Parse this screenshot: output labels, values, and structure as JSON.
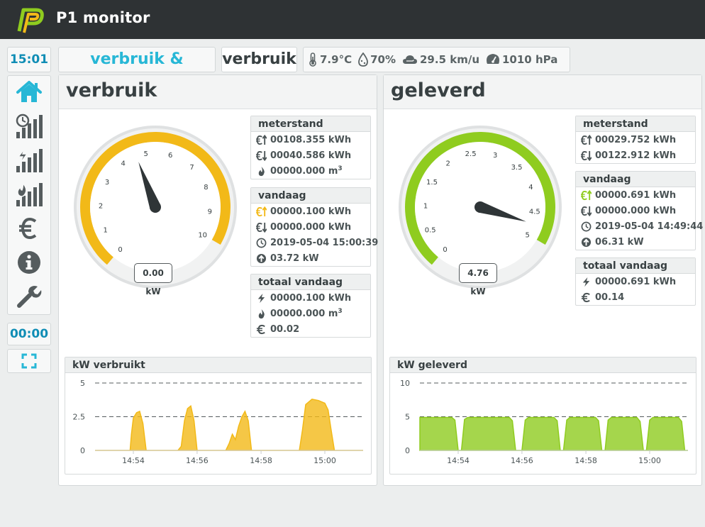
{
  "app": {
    "title": "P1 monitor"
  },
  "clock": "15:01",
  "timer": "00:00",
  "tabs": {
    "both_label": "verbruik & levering",
    "use_label": "verbruik"
  },
  "weather": {
    "temperature": "7.9°C",
    "humidity": "70%",
    "wind": "29.5 km/u",
    "pressure": "1010 hPa"
  },
  "sidebar": {
    "items": [
      {
        "icon": "home-icon",
        "active": true
      },
      {
        "icon": "clock-bars-icon"
      },
      {
        "icon": "power-bars-icon"
      },
      {
        "icon": "gas-bars-icon"
      },
      {
        "icon": "euro-icon"
      },
      {
        "icon": "info-icon"
      },
      {
        "icon": "wrench-icon"
      }
    ]
  },
  "colors": {
    "consumption": "#f2b918",
    "production": "#8fcc1f",
    "accent": "#27b7d6",
    "clock": "#0f8db5",
    "topbar": "#2e3234"
  },
  "verbruik": {
    "title": "verbruik",
    "gauge": {
      "readout": "0.00 kW",
      "value": 0.0,
      "min": 0,
      "max": 10,
      "needle_position": 4.6,
      "ticks": [
        "0",
        "1",
        "2",
        "3",
        "4",
        "5",
        "6",
        "7",
        "8",
        "9",
        "10"
      ]
    },
    "meterstand": {
      "title": "meterstand",
      "lines": [
        {
          "icon": "euro-up-icon",
          "text": "00108.355 kWh"
        },
        {
          "icon": "euro-down-icon",
          "text": "00040.586 kWh"
        },
        {
          "icon": "flame-icon",
          "text": "00000.000 m",
          "sup": "3"
        }
      ]
    },
    "vandaag": {
      "title": "vandaag",
      "lines": [
        {
          "icon": "euro-up-icon",
          "text": "00000.100 kWh",
          "highlight": true
        },
        {
          "icon": "euro-down-icon",
          "text": "00000.000 kWh"
        },
        {
          "icon": "clock-icon",
          "text": "2019-05-04 15:00:39"
        },
        {
          "icon": "arrow-up-circle-icon",
          "text": "03.72 kW"
        }
      ]
    },
    "totaal": {
      "title": "totaal vandaag",
      "lines": [
        {
          "icon": "bolt-icon",
          "text": "00000.100 kWh"
        },
        {
          "icon": "flame-icon",
          "text": "00000.000 m",
          "sup": "3"
        },
        {
          "icon": "euro-icon",
          "text": "00.02"
        }
      ]
    },
    "chart_title": "kW verbruikt"
  },
  "geleverd": {
    "title": "geleverd",
    "gauge": {
      "readout": "4.76 kW",
      "value": 4.76,
      "min": 0,
      "max": 5,
      "needle_position": 4.76,
      "ticks": [
        "0",
        "0.5",
        "1",
        "1.5",
        "2",
        "2.5",
        "3",
        "3.5",
        "4",
        "4.5",
        "5"
      ]
    },
    "meterstand": {
      "title": "meterstand",
      "lines": [
        {
          "icon": "euro-up-icon",
          "text": "00029.752 kWh"
        },
        {
          "icon": "euro-down-icon",
          "text": "00122.912 kWh"
        }
      ]
    },
    "vandaag": {
      "title": "vandaag",
      "lines": [
        {
          "icon": "euro-up-icon",
          "text": "00000.691 kWh",
          "highlight": true
        },
        {
          "icon": "euro-down-icon",
          "text": "00000.000 kWh"
        },
        {
          "icon": "clock-icon",
          "text": "2019-05-04 14:49:44"
        },
        {
          "icon": "arrow-up-circle-icon",
          "text": "06.31 kW"
        }
      ]
    },
    "totaal": {
      "title": "totaal vandaag",
      "lines": [
        {
          "icon": "bolt-icon",
          "text": "00000.691 kWh"
        },
        {
          "icon": "euro-icon",
          "text": "00.14"
        }
      ]
    },
    "chart_title": "kW geleverd"
  },
  "chart_data": [
    {
      "type": "area",
      "title": "kW verbruikt",
      "xlabel": "",
      "ylabel": "",
      "x_ticks": [
        "14:54",
        "14:56",
        "14:58",
        "15:00"
      ],
      "y_ticks": [
        "0",
        "2.5",
        "5"
      ],
      "ylim": [
        0,
        5
      ],
      "xlim": [
        14.88,
        15.02
      ],
      "grid": "dashed horizontal",
      "series": [
        {
          "color": "#f2b918",
          "points": [
            [
              14.88,
              0
            ],
            [
              14.8917,
              0
            ],
            [
              14.8983,
              0
            ],
            [
              14.899,
              1.2
            ],
            [
              14.9,
              2.4
            ],
            [
              14.9017,
              2.8
            ],
            [
              14.9033,
              2.9
            ],
            [
              14.905,
              2.0
            ],
            [
              14.9067,
              0
            ],
            [
              14.9233,
              0
            ],
            [
              14.925,
              0.3
            ],
            [
              14.9267,
              2.2
            ],
            [
              14.9283,
              3.1
            ],
            [
              14.93,
              3.3
            ],
            [
              14.9317,
              2.2
            ],
            [
              14.9333,
              0
            ],
            [
              14.9483,
              0
            ],
            [
              14.95,
              0.5
            ],
            [
              14.9517,
              1.2
            ],
            [
              14.9533,
              0.8
            ],
            [
              14.955,
              1.8
            ],
            [
              14.9567,
              2.5
            ],
            [
              14.9583,
              2.9
            ],
            [
              14.96,
              2.2
            ],
            [
              14.9617,
              0
            ],
            [
              14.9867,
              0
            ],
            [
              14.9883,
              1.5
            ],
            [
              14.99,
              3.4
            ],
            [
              14.9933,
              3.8
            ],
            [
              14.9967,
              3.7
            ],
            [
              15.0,
              3.5
            ],
            [
              15.0017,
              3.0
            ],
            [
              15.0033,
              1.5
            ],
            [
              15.005,
              0
            ],
            [
              15.02,
              0
            ]
          ]
        }
      ]
    },
    {
      "type": "area",
      "title": "kW geleverd",
      "xlabel": "",
      "ylabel": "",
      "x_ticks": [
        "14:54",
        "14:56",
        "14:58",
        "15:00"
      ],
      "y_ticks": [
        "0",
        "5",
        "10"
      ],
      "ylim": [
        0,
        10
      ],
      "xlim": [
        14.88,
        15.02
      ],
      "grid": "dashed horizontal",
      "series": [
        {
          "color": "#8fcc1f",
          "points": [
            [
              14.88,
              4.9
            ],
            [
              14.8967,
              4.9
            ],
            [
              14.8983,
              4.5
            ],
            [
              14.9,
              0
            ],
            [
              14.9017,
              0
            ],
            [
              14.9033,
              4.6
            ],
            [
              14.905,
              4.9
            ],
            [
              14.9267,
              4.9
            ],
            [
              14.9283,
              4.4
            ],
            [
              14.93,
              0
            ],
            [
              14.9333,
              0
            ],
            [
              14.935,
              4.5
            ],
            [
              14.9367,
              4.9
            ],
            [
              14.95,
              4.9
            ],
            [
              14.9517,
              4.4
            ],
            [
              14.9533,
              0
            ],
            [
              14.955,
              0
            ],
            [
              14.9567,
              4.5
            ],
            [
              14.9583,
              4.9
            ],
            [
              14.9717,
              4.9
            ],
            [
              14.9733,
              4.4
            ],
            [
              14.975,
              0
            ],
            [
              14.9767,
              0
            ],
            [
              14.9783,
              4.5
            ],
            [
              14.98,
              4.9
            ],
            [
              14.9933,
              4.9
            ],
            [
              14.995,
              4.3
            ],
            [
              14.9967,
              0
            ],
            [
              14.9983,
              0
            ],
            [
              15.0,
              4.5
            ],
            [
              15.0017,
              4.9
            ],
            [
              15.015,
              4.9
            ],
            [
              15.0167,
              4.3
            ],
            [
              15.0183,
              0
            ],
            [
              15.02,
              0
            ]
          ]
        }
      ]
    }
  ]
}
